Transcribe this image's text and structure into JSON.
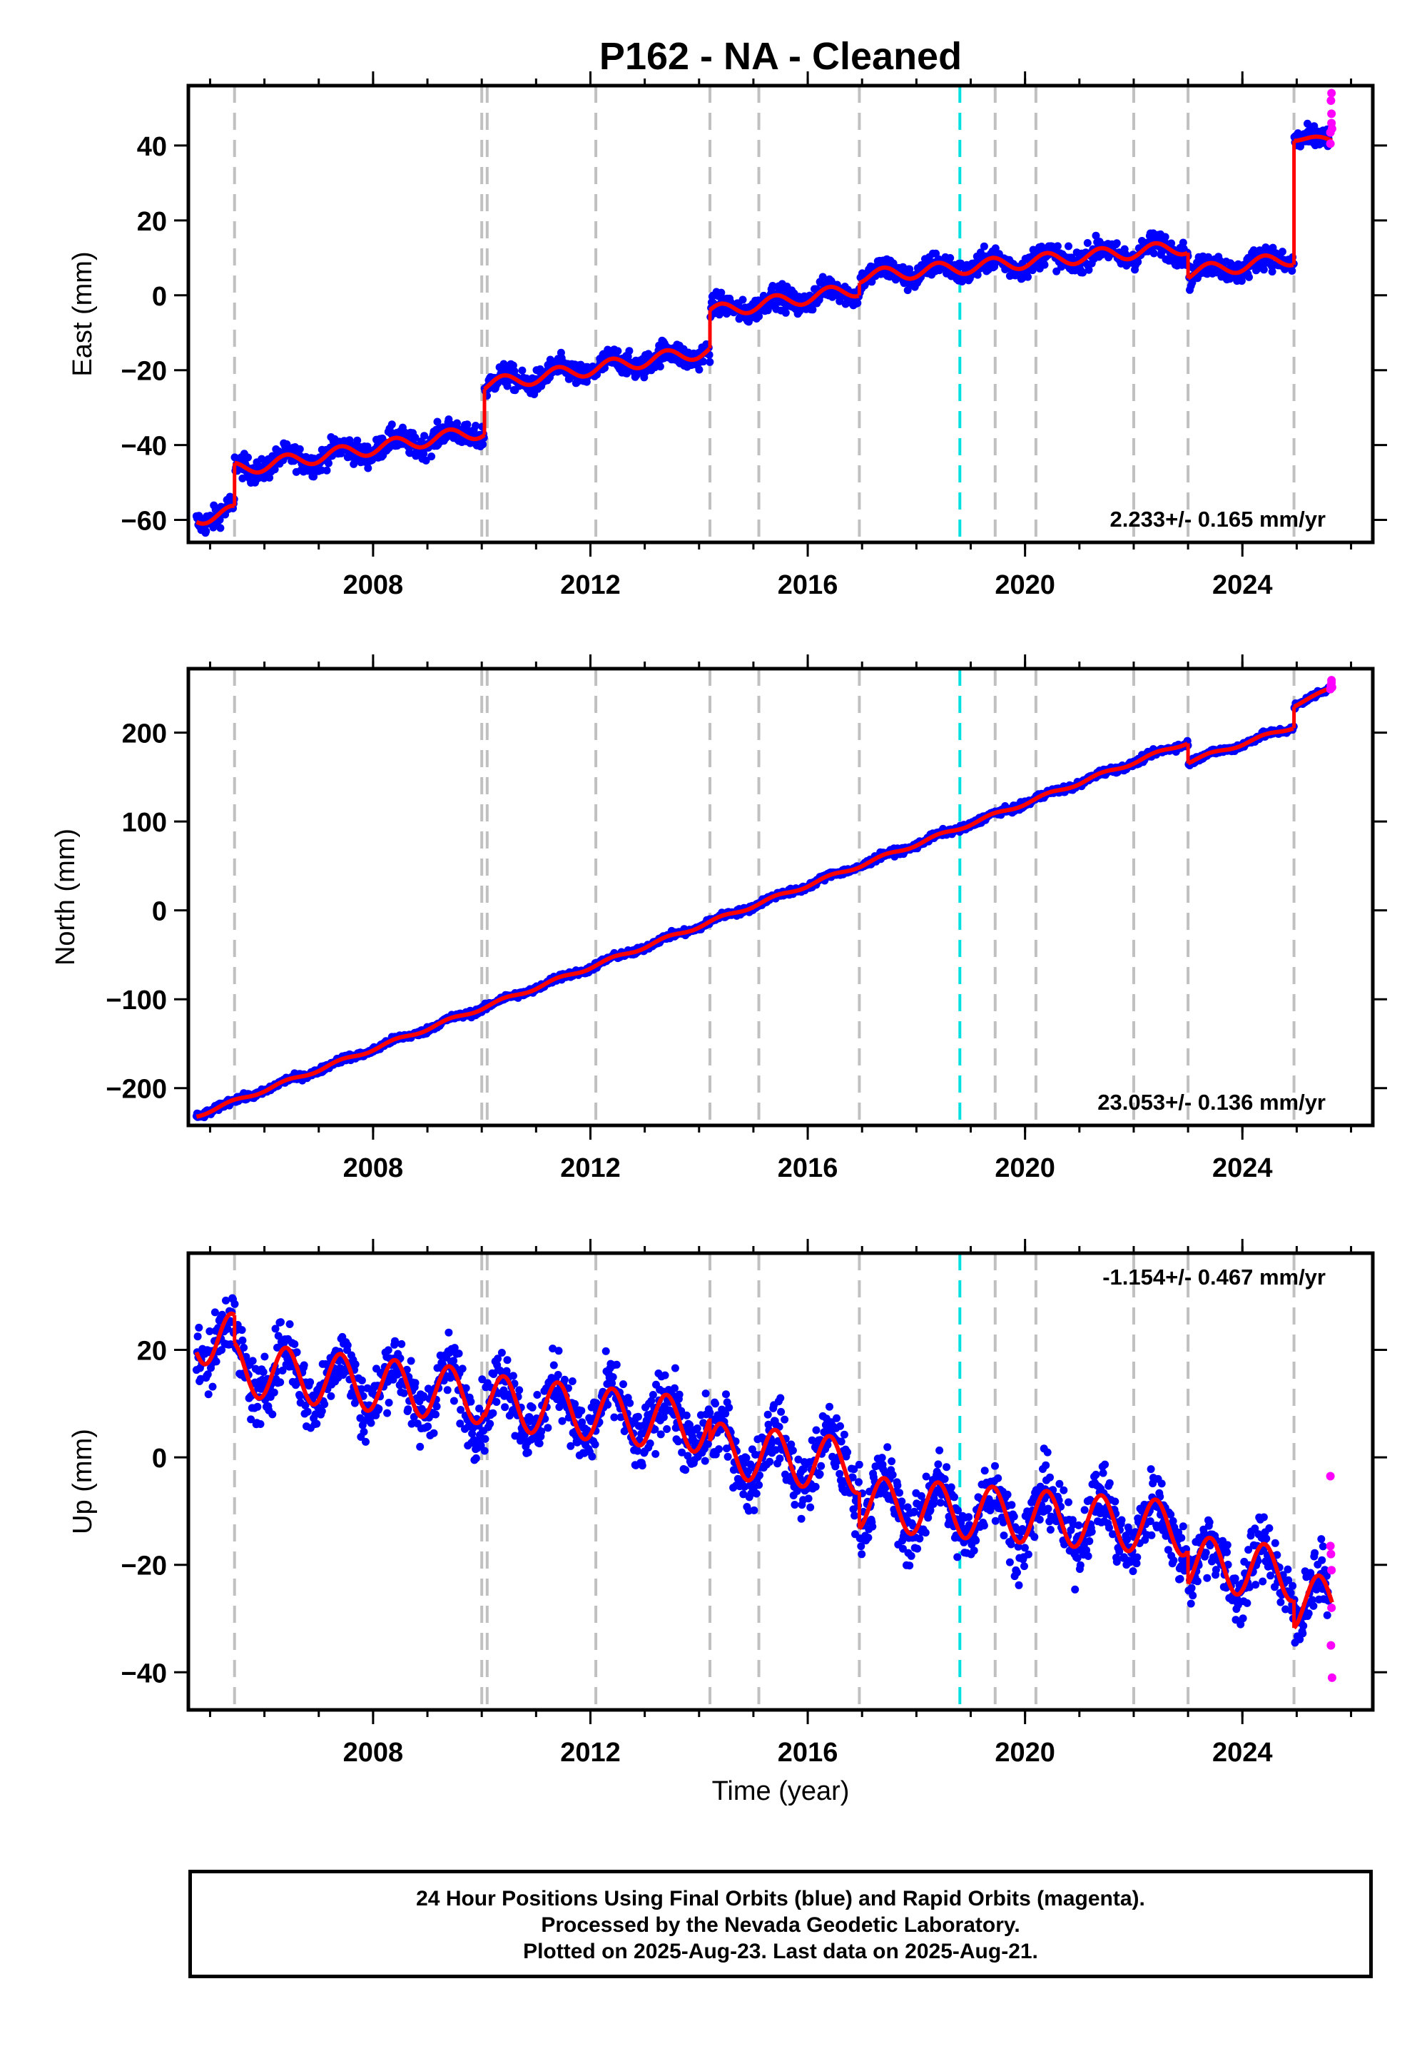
{
  "title": "P162  - NA - Cleaned",
  "footer": {
    "line1": "24 Hour Positions Using Final Orbits (blue) and Rapid Orbits (magenta).",
    "line2": "Processed by the Nevada Geodetic Laboratory.",
    "line3": "Plotted on 2025-Aug-23. Last data on 2025-Aug-21."
  },
  "colors": {
    "final_orbits": "#0000ff",
    "rapid_orbits": "#ff00ff",
    "model_fit": "#ff0000",
    "equipment_change": "#c0c0c0",
    "earthquake": "#00e0e0"
  },
  "chart_data": [
    {
      "type": "scatter",
      "ylabel": "East (mm)",
      "xlim": [
        2004.6,
        2026.4
      ],
      "ylim": [
        -66,
        56
      ],
      "xticks": [
        2008,
        2012,
        2016,
        2020,
        2024
      ],
      "yticks": [
        -60,
        -40,
        -20,
        0,
        20,
        40
      ],
      "rate": "2.233+/- 0.165 mm/yr",
      "rate_position": "bottom-right",
      "equipment_change_years": [
        2005.45,
        2010.0,
        2010.1,
        2012.1,
        2014.2,
        2015.1,
        2016.95,
        2019.45,
        2020.2,
        2022.0,
        2023.0,
        2024.95
      ],
      "earthquake_years": [
        2018.8
      ],
      "model_segments": [
        {
          "x0": 2004.75,
          "x1": 2005.45,
          "y0": -59.5,
          "rate": 2.233,
          "annual_amp": 1.8
        },
        {
          "x0": 2005.45,
          "x1": 2010.05,
          "y0": -46.5,
          "rate": 2.233,
          "annual_amp": 1.8
        },
        {
          "x0": 2010.05,
          "x1": 2014.2,
          "y0": -24.0,
          "rate": 2.233,
          "annual_amp": 1.8
        },
        {
          "x0": 2014.2,
          "x1": 2016.95,
          "y0": -4.5,
          "rate": 2.233,
          "annual_amp": 1.8
        },
        {
          "x0": 2016.95,
          "x1": 2023.0,
          "y0": 5.0,
          "rate": 1.3,
          "annual_amp": 1.8
        },
        {
          "x0": 2023.0,
          "x1": 2024.95,
          "y0": 6.0,
          "rate": 2.0,
          "annual_amp": 1.8
        },
        {
          "x0": 2024.95,
          "x1": 2025.65,
          "y0": 42.0,
          "rate": -1.0,
          "annual_amp": 0.8
        }
      ],
      "scatter": 2.2,
      "rapid_points": [
        [
          2025.62,
          40.5
        ],
        [
          2025.62,
          43.5
        ],
        [
          2025.64,
          46.0
        ],
        [
          2025.64,
          48.5
        ],
        [
          2025.63,
          52.0
        ],
        [
          2025.64,
          54.0
        ],
        [
          2025.65,
          44.5
        ]
      ]
    },
    {
      "type": "scatter",
      "ylabel": "North (mm)",
      "xlim": [
        2004.6,
        2026.4
      ],
      "ylim": [
        -242,
        272
      ],
      "xticks": [
        2008,
        2012,
        2016,
        2020,
        2024
      ],
      "yticks": [
        -200,
        -100,
        0,
        100,
        200
      ],
      "rate": "23.053+/- 0.136 mm/yr",
      "rate_position": "bottom-right",
      "equipment_change_years": [
        2005.45,
        2010.0,
        2010.1,
        2012.1,
        2014.2,
        2015.1,
        2016.95,
        2019.45,
        2020.2,
        2022.0,
        2023.0,
        2024.95
      ],
      "earthquake_years": [
        2018.8
      ],
      "model_segments": [
        {
          "x0": 2004.75,
          "x1": 2023.0,
          "y0": -231.0,
          "rate": 23.053,
          "annual_amp": 2.0
        },
        {
          "x0": 2023.0,
          "x1": 2024.95,
          "y0": 167.0,
          "rate": 20.5,
          "annual_amp": 2.0
        },
        {
          "x0": 2024.95,
          "x1": 2025.65,
          "y0": 230.0,
          "rate": 30.0,
          "annual_amp": 1.0
        }
      ],
      "scatter": 2.5,
      "rapid_points": [
        [
          2025.62,
          249.0
        ],
        [
          2025.63,
          253.0
        ],
        [
          2025.64,
          256.0
        ],
        [
          2025.64,
          259.0
        ],
        [
          2025.65,
          251.0
        ]
      ]
    },
    {
      "type": "scatter",
      "ylabel": "Up (mm)",
      "xlabel": "Time (year)",
      "xlim": [
        2004.6,
        2026.4
      ],
      "ylim": [
        -47,
        38
      ],
      "xticks": [
        2008,
        2012,
        2016,
        2020,
        2024
      ],
      "yticks": [
        -40,
        -20,
        0,
        20
      ],
      "rate": "-1.154+/- 0.467 mm/yr",
      "rate_position": "top-right",
      "equipment_change_years": [
        2005.45,
        2010.0,
        2010.1,
        2012.1,
        2014.2,
        2015.1,
        2016.95,
        2019.45,
        2020.2,
        2022.0,
        2023.0,
        2024.95
      ],
      "earthquake_years": [
        2018.8
      ],
      "model_segments": [
        {
          "x0": 2004.75,
          "x1": 2005.45,
          "y0": 22.5,
          "rate": -1.154,
          "annual_amp": 5.0
        },
        {
          "x0": 2005.45,
          "x1": 2010.05,
          "y0": 16.5,
          "rate": -1.154,
          "annual_amp": 5.0
        },
        {
          "x0": 2010.05,
          "x1": 2014.2,
          "y0": 10.5,
          "rate": -1.154,
          "annual_amp": 5.0
        },
        {
          "x0": 2014.2,
          "x1": 2016.95,
          "y0": 1.5,
          "rate": -1.154,
          "annual_amp": 5.0
        },
        {
          "x0": 2016.95,
          "x1": 2023.0,
          "y0": -8.5,
          "rate": -0.8,
          "annual_amp": 5.0
        },
        {
          "x0": 2023.0,
          "x1": 2024.95,
          "y0": -19.5,
          "rate": -1.154,
          "annual_amp": 5.0
        },
        {
          "x0": 2024.95,
          "x1": 2025.65,
          "y0": -27.0,
          "rate": 0.0,
          "annual_amp": 5.0
        }
      ],
      "scatter": 4.2,
      "rapid_points": [
        [
          2025.62,
          -3.5
        ],
        [
          2025.62,
          -16.5
        ],
        [
          2025.63,
          -18.0
        ],
        [
          2025.64,
          -21.0
        ],
        [
          2025.64,
          -28.0
        ],
        [
          2025.63,
          -35.0
        ],
        [
          2025.65,
          -41.0
        ]
      ]
    }
  ]
}
